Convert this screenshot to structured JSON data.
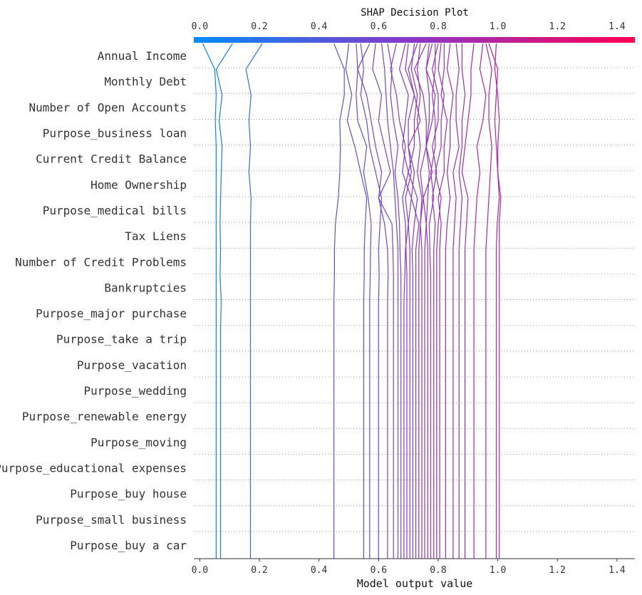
{
  "chart_data": {
    "type": "line",
    "subtype": "shap-decision-plot",
    "title": "SHAP Decision Plot",
    "xlabel": "Model output value",
    "ylabel": "",
    "xlim": [
      -0.02,
      1.46
    ],
    "xticks": [
      0.0,
      0.2,
      0.4,
      0.6,
      0.8,
      1.0,
      1.2,
      1.4
    ],
    "xtick_labels": [
      "0.0",
      "0.2",
      "0.4",
      "0.6",
      "0.8",
      "1.0",
      "1.2",
      "1.4"
    ],
    "colorbar": {
      "low": "#008bfb",
      "high": "#ff0051"
    },
    "features": [
      "Annual Income",
      "Monthly Debt",
      "Number of Open Accounts",
      "Purpose_business loan",
      "Current Credit Balance",
      "Home Ownership",
      "Purpose_medical bills",
      "Tax Liens",
      "Number of Credit Problems",
      "Bankruptcies",
      "Purpose_major purchase",
      "Purpose_take a trip",
      "Purpose_vacation",
      "Purpose_wedding",
      "Purpose_renewable energy",
      "Purpose_moving",
      "Purpose_educational expenses",
      "Purpose_buy house",
      "Purpose_small business",
      "Purpose_buy a car"
    ],
    "level_order": "values[0] is the model output at the bottom (base row); values[20] is the final output at the top edge",
    "series": [
      {
        "values": [
          0.055,
          0.055,
          0.055,
          0.055,
          0.055,
          0.055,
          0.055,
          0.055,
          0.055,
          0.055,
          0.055,
          0.055,
          0.055,
          0.055,
          0.055,
          0.055,
          0.055,
          0.052,
          0.055,
          0.05,
          0.01
        ]
      },
      {
        "values": [
          0.07,
          0.07,
          0.07,
          0.07,
          0.07,
          0.07,
          0.07,
          0.07,
          0.07,
          0.07,
          0.072,
          0.068,
          0.07,
          0.068,
          0.07,
          0.072,
          0.075,
          0.065,
          0.075,
          0.055,
          0.11
        ]
      },
      {
        "values": [
          0.17,
          0.17,
          0.17,
          0.17,
          0.17,
          0.17,
          0.17,
          0.17,
          0.17,
          0.17,
          0.17,
          0.17,
          0.17,
          0.17,
          0.172,
          0.165,
          0.17,
          0.165,
          0.172,
          0.155,
          0.21
        ]
      },
      {
        "values": [
          0.45,
          0.45,
          0.45,
          0.45,
          0.45,
          0.45,
          0.45,
          0.45,
          0.45,
          0.45,
          0.45,
          0.452,
          0.452,
          0.455,
          0.465,
          0.47,
          0.472,
          0.47,
          0.485,
          0.485,
          0.45
        ]
      },
      {
        "values": [
          0.55,
          0.55,
          0.55,
          0.55,
          0.55,
          0.55,
          0.55,
          0.55,
          0.55,
          0.55,
          0.55,
          0.552,
          0.552,
          0.555,
          0.56,
          0.54,
          0.52,
          0.495,
          0.51,
          0.49,
          0.5
        ]
      },
      {
        "values": [
          0.57,
          0.57,
          0.57,
          0.57,
          0.57,
          0.57,
          0.57,
          0.57,
          0.57,
          0.57,
          0.57,
          0.572,
          0.573,
          0.575,
          0.565,
          0.55,
          0.56,
          0.53,
          0.525,
          0.53,
          0.525
        ]
      },
      {
        "values": [
          0.6,
          0.6,
          0.6,
          0.6,
          0.6,
          0.6,
          0.6,
          0.6,
          0.6,
          0.6,
          0.6,
          0.602,
          0.6,
          0.605,
          0.61,
          0.59,
          0.57,
          0.56,
          0.54,
          0.55,
          0.54
        ]
      },
      {
        "values": [
          0.63,
          0.63,
          0.63,
          0.63,
          0.63,
          0.63,
          0.63,
          0.63,
          0.63,
          0.63,
          0.63,
          0.632,
          0.63,
          0.62,
          0.6,
          0.61,
          0.59,
          0.575,
          0.56,
          0.53,
          0.57
        ]
      },
      {
        "values": [
          0.65,
          0.65,
          0.65,
          0.65,
          0.65,
          0.65,
          0.65,
          0.65,
          0.65,
          0.65,
          0.65,
          0.65,
          0.648,
          0.645,
          0.6,
          0.64,
          0.62,
          0.6,
          0.61,
          0.58,
          0.59
        ]
      },
      {
        "values": [
          0.665,
          0.665,
          0.665,
          0.665,
          0.665,
          0.665,
          0.665,
          0.665,
          0.665,
          0.665,
          0.665,
          0.665,
          0.665,
          0.66,
          0.655,
          0.65,
          0.64,
          0.63,
          0.625,
          0.62,
          0.61
        ]
      },
      {
        "values": [
          0.675,
          0.675,
          0.675,
          0.675,
          0.675,
          0.675,
          0.675,
          0.675,
          0.675,
          0.675,
          0.675,
          0.675,
          0.672,
          0.67,
          0.665,
          0.655,
          0.665,
          0.65,
          0.64,
          0.645,
          0.63
        ]
      },
      {
        "values": [
          0.685,
          0.685,
          0.685,
          0.685,
          0.685,
          0.685,
          0.685,
          0.685,
          0.685,
          0.685,
          0.685,
          0.688,
          0.69,
          0.7,
          0.71,
          0.68,
          0.69,
          0.67,
          0.66,
          0.64,
          0.66
        ]
      },
      {
        "values": [
          0.695,
          0.695,
          0.695,
          0.695,
          0.695,
          0.695,
          0.695,
          0.695,
          0.695,
          0.695,
          0.695,
          0.695,
          0.692,
          0.69,
          0.68,
          0.7,
          0.68,
          0.69,
          0.7,
          0.67,
          0.69
        ]
      },
      {
        "values": [
          0.705,
          0.705,
          0.705,
          0.705,
          0.705,
          0.705,
          0.705,
          0.705,
          0.705,
          0.705,
          0.705,
          0.705,
          0.705,
          0.7,
          0.69,
          0.71,
          0.7,
          0.7,
          0.72,
          0.69,
          0.7
        ]
      },
      {
        "values": [
          0.715,
          0.715,
          0.715,
          0.715,
          0.715,
          0.715,
          0.715,
          0.715,
          0.715,
          0.715,
          0.715,
          0.715,
          0.712,
          0.72,
          0.73,
          0.7,
          0.72,
          0.72,
          0.73,
          0.71,
          0.72
        ]
      },
      {
        "values": [
          0.725,
          0.725,
          0.725,
          0.725,
          0.725,
          0.725,
          0.725,
          0.725,
          0.725,
          0.725,
          0.725,
          0.725,
          0.725,
          0.735,
          0.71,
          0.72,
          0.7,
          0.74,
          0.72,
          0.7,
          0.73
        ]
      },
      {
        "values": [
          0.735,
          0.735,
          0.735,
          0.735,
          0.735,
          0.735,
          0.735,
          0.735,
          0.735,
          0.735,
          0.735,
          0.735,
          0.735,
          0.74,
          0.745,
          0.73,
          0.74,
          0.73,
          0.74,
          0.73,
          0.74
        ]
      },
      {
        "values": [
          0.745,
          0.745,
          0.745,
          0.745,
          0.745,
          0.745,
          0.745,
          0.745,
          0.745,
          0.745,
          0.745,
          0.745,
          0.745,
          0.74,
          0.75,
          0.74,
          0.76,
          0.76,
          0.75,
          0.72,
          0.76
        ]
      },
      {
        "values": [
          0.755,
          0.755,
          0.755,
          0.755,
          0.755,
          0.755,
          0.755,
          0.755,
          0.755,
          0.755,
          0.755,
          0.755,
          0.755,
          0.76,
          0.765,
          0.77,
          0.76,
          0.77,
          0.77,
          0.76,
          0.77
        ]
      },
      {
        "values": [
          0.765,
          0.765,
          0.765,
          0.765,
          0.765,
          0.765,
          0.765,
          0.765,
          0.765,
          0.765,
          0.765,
          0.765,
          0.765,
          0.76,
          0.75,
          0.78,
          0.76,
          0.78,
          0.79,
          0.76,
          0.78
        ]
      },
      {
        "values": [
          0.775,
          0.775,
          0.775,
          0.775,
          0.775,
          0.775,
          0.775,
          0.775,
          0.775,
          0.775,
          0.775,
          0.775,
          0.772,
          0.77,
          0.785,
          0.775,
          0.79,
          0.79,
          0.78,
          0.79,
          0.79
        ]
      },
      {
        "values": [
          0.785,
          0.785,
          0.785,
          0.785,
          0.785,
          0.785,
          0.785,
          0.785,
          0.785,
          0.785,
          0.785,
          0.785,
          0.785,
          0.79,
          0.78,
          0.795,
          0.78,
          0.8,
          0.8,
          0.78,
          0.8
        ]
      },
      {
        "values": [
          0.795,
          0.795,
          0.795,
          0.795,
          0.795,
          0.795,
          0.795,
          0.795,
          0.795,
          0.795,
          0.795,
          0.795,
          0.795,
          0.8,
          0.81,
          0.79,
          0.81,
          0.81,
          0.82,
          0.8,
          0.81
        ]
      },
      {
        "values": [
          0.805,
          0.805,
          0.805,
          0.805,
          0.805,
          0.805,
          0.805,
          0.805,
          0.805,
          0.805,
          0.805,
          0.805,
          0.805,
          0.81,
          0.8,
          0.82,
          0.82,
          0.83,
          0.81,
          0.82,
          0.82
        ]
      },
      {
        "values": [
          0.825,
          0.825,
          0.825,
          0.825,
          0.825,
          0.825,
          0.825,
          0.825,
          0.825,
          0.825,
          0.825,
          0.825,
          0.825,
          0.83,
          0.84,
          0.83,
          0.84,
          0.84,
          0.85,
          0.83,
          0.84
        ]
      },
      {
        "values": [
          0.85,
          0.85,
          0.85,
          0.85,
          0.85,
          0.85,
          0.85,
          0.85,
          0.85,
          0.85,
          0.85,
          0.85,
          0.85,
          0.855,
          0.86,
          0.85,
          0.87,
          0.86,
          0.86,
          0.87,
          0.86
        ]
      },
      {
        "values": [
          0.87,
          0.87,
          0.87,
          0.87,
          0.87,
          0.87,
          0.87,
          0.87,
          0.87,
          0.87,
          0.87,
          0.87,
          0.87,
          0.875,
          0.88,
          0.87,
          0.88,
          0.88,
          0.89,
          0.88,
          0.88
        ]
      },
      {
        "values": [
          0.89,
          0.89,
          0.89,
          0.89,
          0.89,
          0.89,
          0.89,
          0.89,
          0.89,
          0.89,
          0.89,
          0.89,
          0.89,
          0.895,
          0.9,
          0.88,
          0.89,
          0.9,
          0.91,
          0.91,
          0.92
        ]
      },
      {
        "values": [
          0.92,
          0.92,
          0.92,
          0.92,
          0.92,
          0.92,
          0.92,
          0.92,
          0.92,
          0.92,
          0.92,
          0.92,
          0.92,
          0.925,
          0.93,
          0.94,
          0.93,
          0.95,
          0.96,
          0.94,
          0.95
        ]
      },
      {
        "values": [
          0.96,
          0.96,
          0.96,
          0.96,
          0.96,
          0.96,
          0.96,
          0.96,
          0.96,
          0.96,
          0.96,
          0.96,
          0.96,
          0.965,
          0.97,
          0.975,
          0.98,
          0.97,
          0.97,
          0.98,
          0.96
        ]
      },
      {
        "values": [
          0.995,
          0.995,
          0.995,
          0.995,
          0.995,
          0.995,
          0.995,
          0.995,
          0.995,
          0.995,
          0.995,
          0.995,
          0.995,
          0.998,
          1.005,
          1.0,
          0.995,
          0.99,
          0.995,
          1.0,
          0.97
        ]
      },
      {
        "values": [
          1.005,
          1.005,
          1.005,
          1.005,
          1.005,
          1.005,
          1.005,
          1.005,
          1.005,
          1.005,
          1.005,
          1.005,
          1.005,
          1.005,
          1.01,
          1.0,
          1.0,
          1.005,
          1.0,
          0.99,
          0.995
        ]
      }
    ]
  }
}
